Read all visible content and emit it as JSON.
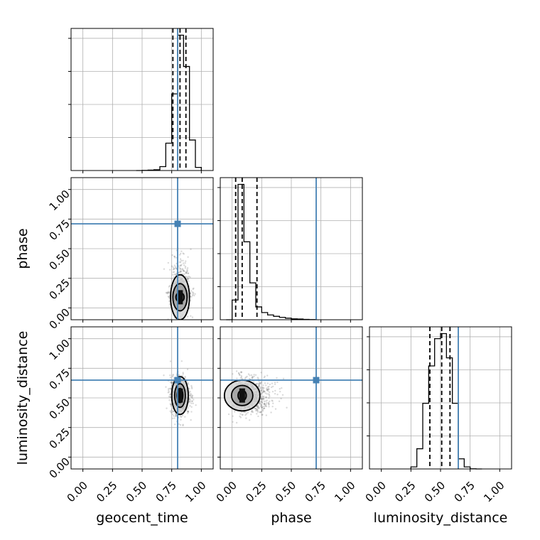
{
  "chart_data": {
    "type": "corner",
    "parameters": [
      "geocent_time",
      "phase",
      "luminosity_distance"
    ],
    "axis_range": [
      -0.1,
      1.1
    ],
    "tick_values": [
      0.0,
      0.25,
      0.5,
      0.75,
      1.0
    ],
    "tick_labels": [
      "0.00",
      "0.25",
      "0.50",
      "0.75",
      "1.00"
    ],
    "grid": true,
    "colors": {
      "truth": "#4682b4",
      "hist": "#000000",
      "quantile": "#000000",
      "samples": "#555555",
      "contour_fill_outer": "#d0d0d0",
      "contour_fill_mid": "#9a9a9a",
      "contour_fill_inner": "#3a3a3a"
    },
    "truths": {
      "geocent_time": 0.8,
      "phase": 0.71,
      "luminosity_distance": 0.65
    },
    "quantiles": {
      "geocent_time": [
        0.76,
        0.82,
        0.87
      ],
      "phase": [
        0.03,
        0.085,
        0.21
      ],
      "luminosity_distance": [
        0.41,
        0.51,
        0.58
      ]
    },
    "histograms": {
      "geocent_time": {
        "bin_edges": [
          0.45,
          0.5,
          0.55,
          0.6,
          0.65,
          0.7,
          0.75,
          0.8,
          0.85,
          0.9,
          0.95,
          1.0
        ],
        "counts": [
          0.0,
          0.02,
          0.05,
          0.1,
          0.5,
          3.5,
          9.8,
          17.3,
          13.3,
          3.9,
          0.4
        ]
      },
      "phase": {
        "bin_edges": [
          -0.05,
          0.0,
          0.05,
          0.1,
          0.15,
          0.2,
          0.25,
          0.3,
          0.35,
          0.4,
          0.45,
          0.5,
          0.55,
          0.6,
          0.65,
          0.7
        ],
        "counts": [
          0.0,
          1.15,
          7.9,
          4.55,
          2.15,
          0.75,
          0.42,
          0.28,
          0.2,
          0.14,
          0.09,
          0.05,
          0.04,
          0.02,
          0.01
        ]
      },
      "luminosity_distance": {
        "bin_edges": [
          0.25,
          0.3,
          0.35,
          0.4,
          0.45,
          0.5,
          0.55,
          0.6,
          0.65,
          0.7,
          0.75,
          0.8,
          0.85
        ],
        "counts": [
          0.2,
          2.0,
          6.5,
          10.2,
          12.9,
          13.4,
          11.0,
          6.5,
          1.0,
          0.2,
          0.02,
          0.0
        ]
      }
    },
    "pairs": [
      {
        "x": "geocent_time",
        "y": "phase",
        "center": [
          0.82,
          0.09
        ],
        "contour_radii": [
          [
            0.035,
            0.04
          ],
          [
            0.06,
            0.115
          ],
          [
            0.08,
            0.19
          ]
        ],
        "sample_spread": [
          0.045,
          0.11
        ]
      },
      {
        "x": "geocent_time",
        "y": "luminosity_distance",
        "center": [
          0.82,
          0.52
        ],
        "contour_radii": [
          [
            0.025,
            0.06
          ],
          [
            0.045,
            0.1
          ],
          [
            0.07,
            0.16
          ]
        ],
        "sample_spread": [
          0.045,
          0.09
        ]
      },
      {
        "x": "phase",
        "y": "luminosity_distance",
        "center": [
          0.085,
          0.52
        ],
        "contour_radii": [
          [
            0.035,
            0.045
          ],
          [
            0.09,
            0.085
          ],
          [
            0.15,
            0.13
          ]
        ],
        "sample_spread": [
          0.1,
          0.085
        ]
      }
    ]
  }
}
